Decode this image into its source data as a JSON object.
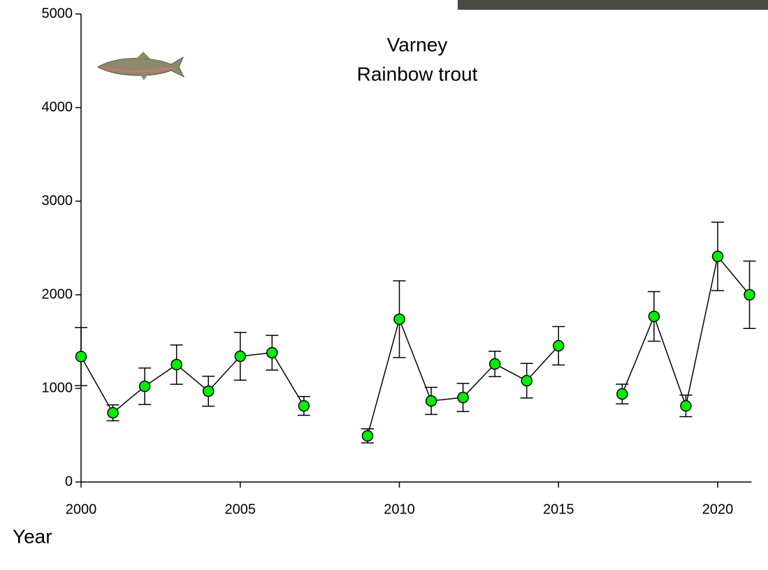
{
  "chart_data": {
    "type": "line",
    "title": "Varney",
    "subtitle": "Rainbow trout",
    "x_label": "Year",
    "x": [
      2000,
      2001,
      2002,
      2003,
      2004,
      2005,
      2006,
      2007,
      2008,
      2009,
      2010,
      2011,
      2012,
      2013,
      2014,
      2015,
      2016,
      2017,
      2018,
      2019,
      2020,
      2021
    ],
    "series": [
      {
        "name": "Rainbow trout",
        "color": "#00ee00",
        "values": [
          1340,
          739,
          1022,
          1254,
          970,
          1343,
          1381,
          813,
          null,
          493,
          1739,
          866,
          903,
          1261,
          1082,
          1455,
          null,
          940,
          1769,
          813,
          2410,
          2000
        ],
        "errors": [
          310,
          85,
          195,
          210,
          160,
          255,
          185,
          100,
          null,
          75,
          410,
          145,
          150,
          135,
          185,
          205,
          null,
          105,
          265,
          115,
          365,
          360
        ]
      }
    ],
    "xlim": [
      2000,
      2021
    ],
    "xticks": [
      2000,
      2005,
      2010,
      2015,
      2020
    ],
    "ylim": [
      0,
      5000
    ],
    "yticks": [
      0,
      1000,
      2000,
      3000,
      4000,
      5000
    ]
  }
}
